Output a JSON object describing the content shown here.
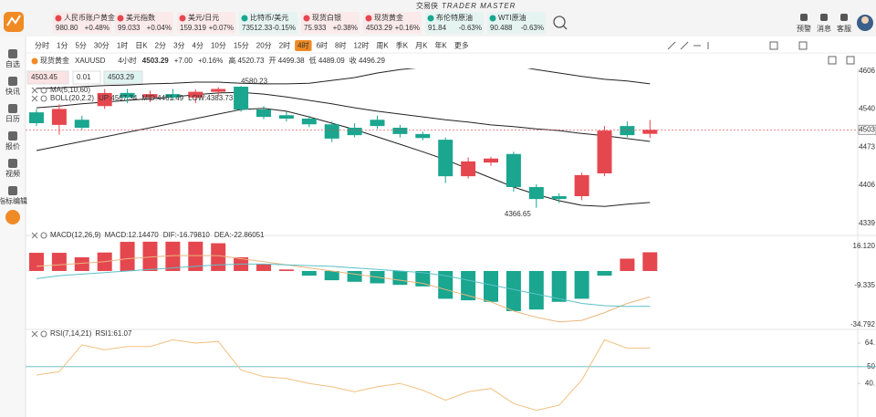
{
  "app": {
    "title": "交易侠",
    "subtitle": "TRADER MASTER"
  },
  "tickers": [
    {
      "name": "人民币账户黄金",
      "price": "980.80",
      "change": "+0.48%"
    },
    {
      "name": "美元指数",
      "price": "99.033",
      "change": "+0.04%"
    },
    {
      "name": "美元/日元",
      "price": "159.319",
      "change": "+0.07%"
    },
    {
      "name": "比特币/美元",
      "price": "73512.33",
      "change": "-0.15%"
    },
    {
      "name": "现货白银",
      "price": "75.933",
      "change": "+0.38%"
    },
    {
      "name": "现货黄金",
      "price": "4503.29",
      "change": "+0.16%"
    },
    {
      "name": "布伦特原油",
      "price": "91.84",
      "change": "-0.63%"
    },
    {
      "name": "WTI原油",
      "price": "90.488",
      "change": "-0.63%"
    }
  ],
  "top_right": [
    "预警",
    "消息",
    "客服"
  ],
  "sidebar": [
    "自选",
    "快讯",
    "日历",
    "报价",
    "视频",
    "指标编辑"
  ],
  "timeframes": [
    "分时",
    "1分",
    "5分",
    "30分",
    "1时",
    "日K",
    "2分",
    "3分",
    "4分",
    "10分",
    "15分",
    "20分",
    "2时",
    "4时",
    "6时",
    "8时",
    "12时",
    "周K",
    "季K",
    "月K",
    "年K",
    "更多"
  ],
  "active_timeframe": "4时",
  "symbol_bar": {
    "name": "现货黄金",
    "code": "XAUUSD",
    "period": "4小时",
    "price": "4503.29",
    "change": "+7.00",
    "change_pct": "+0.16%",
    "stats": [
      "高 4520.73",
      "开 4499.38",
      "低 4489.09",
      "收 4496.29"
    ]
  },
  "order": {
    "bid": "4503.45",
    "quantity": "0.01",
    "ask": "4503.29"
  },
  "chart_data": [
    {
      "type": "candlestick",
      "open": [
        4534,
        4512,
        4521,
        4545,
        4568,
        4560,
        4566,
        4560,
        4570,
        4579,
        4539,
        4529,
        4523,
        4513,
        4507,
        4521,
        4507,
        4496,
        4486,
        4422,
        4446,
        4461,
        4403,
        4387,
        4387,
        4427,
        4510,
        4496.29
      ],
      "high": [
        4540,
        4548,
        4528,
        4575,
        4575,
        4572,
        4575,
        4574,
        4578,
        4580.23,
        4545,
        4535,
        4528,
        4518,
        4515,
        4528,
        4512,
        4500,
        4490,
        4455,
        4456,
        4465,
        4408,
        4392,
        4428,
        4510,
        4518,
        4520.73
      ],
      "low": [
        4510,
        4495,
        4503,
        4540,
        4550,
        4552,
        4555,
        4550,
        4562,
        4535,
        4522,
        4518,
        4508,
        4482,
        4490,
        4505,
        4490,
        4485,
        4410,
        4418,
        4440,
        4395,
        4366.65,
        4375,
        4380,
        4422,
        4490,
        4489.09
      ],
      "close": [
        4515,
        4540,
        4507,
        4568,
        4560,
        4566,
        4560,
        4570,
        4575,
        4539,
        4526,
        4523,
        4513,
        4488,
        4494,
        4510,
        4496,
        4489,
        4422,
        4448,
        4453,
        4403,
        4382,
        4382,
        4424,
        4502,
        4494,
        4503.29
      ],
      "up_color": "#e5474f",
      "down_color": "#1aa68f",
      "lines": [
        {
          "color": "#222222",
          "values": [
            4576,
            4577,
            4579,
            4581,
            4582,
            4584,
            4585,
            4587,
            4587,
            4585,
            4584,
            4584,
            4585,
            4590,
            4595,
            4603,
            4609,
            4613,
            4616,
            4619,
            4619,
            4616,
            4609,
            4603,
            4597,
            4592,
            4589,
            4584
          ]
        },
        {
          "color": "#222222",
          "values": [
            4542,
            4545,
            4549,
            4552,
            4555,
            4558,
            4561,
            4565,
            4568,
            4569,
            4566,
            4561,
            4555,
            4549,
            4542,
            4536,
            4531,
            4526,
            4521,
            4517,
            4512,
            4509,
            4505,
            4502,
            4497,
            4493,
            4488,
            4483
          ]
        },
        {
          "color": "#222222",
          "values": [
            4467,
            4475,
            4483,
            4491,
            4499,
            4507,
            4515,
            4523,
            4531,
            4539,
            4541,
            4536,
            4526,
            4515,
            4504,
            4491,
            4478,
            4465,
            4451,
            4435,
            4419,
            4403,
            4390,
            4379,
            4371,
            4369,
            4373,
            4376
          ]
        }
      ],
      "ylim": [
        4323,
        4611
      ],
      "yticks": [
        4606,
        4540,
        4473,
        4406,
        4339
      ],
      "last_price": {
        "value": 4503.29,
        "label": "4503"
      },
      "indicators": [
        "MA(5,10,60)",
        "BOLL(20,2.2)"
      ],
      "readouts": [
        "UP:4567.34",
        "MID:4461.49",
        "LOW:4383.73"
      ]
    },
    {
      "type": "bar",
      "values": [
        11.8,
        11.8,
        8.9,
        12,
        18.9,
        19,
        19,
        19,
        18,
        8.9,
        4.7,
        1,
        -3,
        -6,
        -7,
        -8,
        -9,
        -10,
        -18,
        -19,
        -20,
        -26,
        -25,
        -20,
        -18,
        -3,
        8,
        12.1447
      ],
      "up_color": "#e5474f",
      "down_color": "#1aa68f",
      "series": [
        {
          "color": "#e8b67e",
          "values": [
            3,
            4,
            5,
            6,
            8,
            9,
            10,
            10,
            10,
            8,
            6,
            4,
            2,
            0,
            -2,
            -4,
            -6,
            -8,
            -12,
            -16,
            -20,
            -26,
            -30,
            -33,
            -32,
            -27,
            -21,
            -16.7981
          ]
        },
        {
          "color": "#5bc0c8",
          "values": [
            -5,
            -3,
            -2,
            -1,
            0,
            1,
            2,
            3,
            4,
            4.5,
            4.5,
            4,
            3.5,
            3,
            2,
            1,
            0,
            -1,
            -3,
            -6,
            -9,
            -12,
            -15,
            -18,
            -21,
            -22.5,
            -23,
            -22.86051
          ]
        }
      ],
      "ylim": [
        -36.1,
        20.7
      ],
      "yticks": [
        {
          "value": 16.12,
          "label": "16.120"
        },
        -9.335,
        -34.792
      ],
      "label": "MACD(12,26,9)",
      "readouts": [
        "MACD:12.14470",
        "DIF:-16.79810",
        "DEA:-22.86051"
      ]
    },
    {
      "type": "line",
      "series": [
        {
          "color": "#f0c080",
          "values": [
            45,
            47,
            63,
            60,
            62,
            62,
            66,
            64,
            65,
            48,
            44,
            43,
            40,
            38,
            35,
            38,
            40,
            36,
            30,
            35,
            37,
            28,
            24,
            27,
            42,
            66,
            61,
            61.07
          ]
        }
      ],
      "ylim": [
        20,
        70
      ],
      "yticks": [
        {
          "value": 64,
          "label": "64."
        },
        50,
        {
          "value": 40,
          "label": "40."
        }
      ],
      "hlines": [
        50
      ],
      "hline_color": "#5bb8c0",
      "label": "RSI(7,14,21)",
      "readouts": [
        "RSI1:61.07"
      ]
    }
  ]
}
